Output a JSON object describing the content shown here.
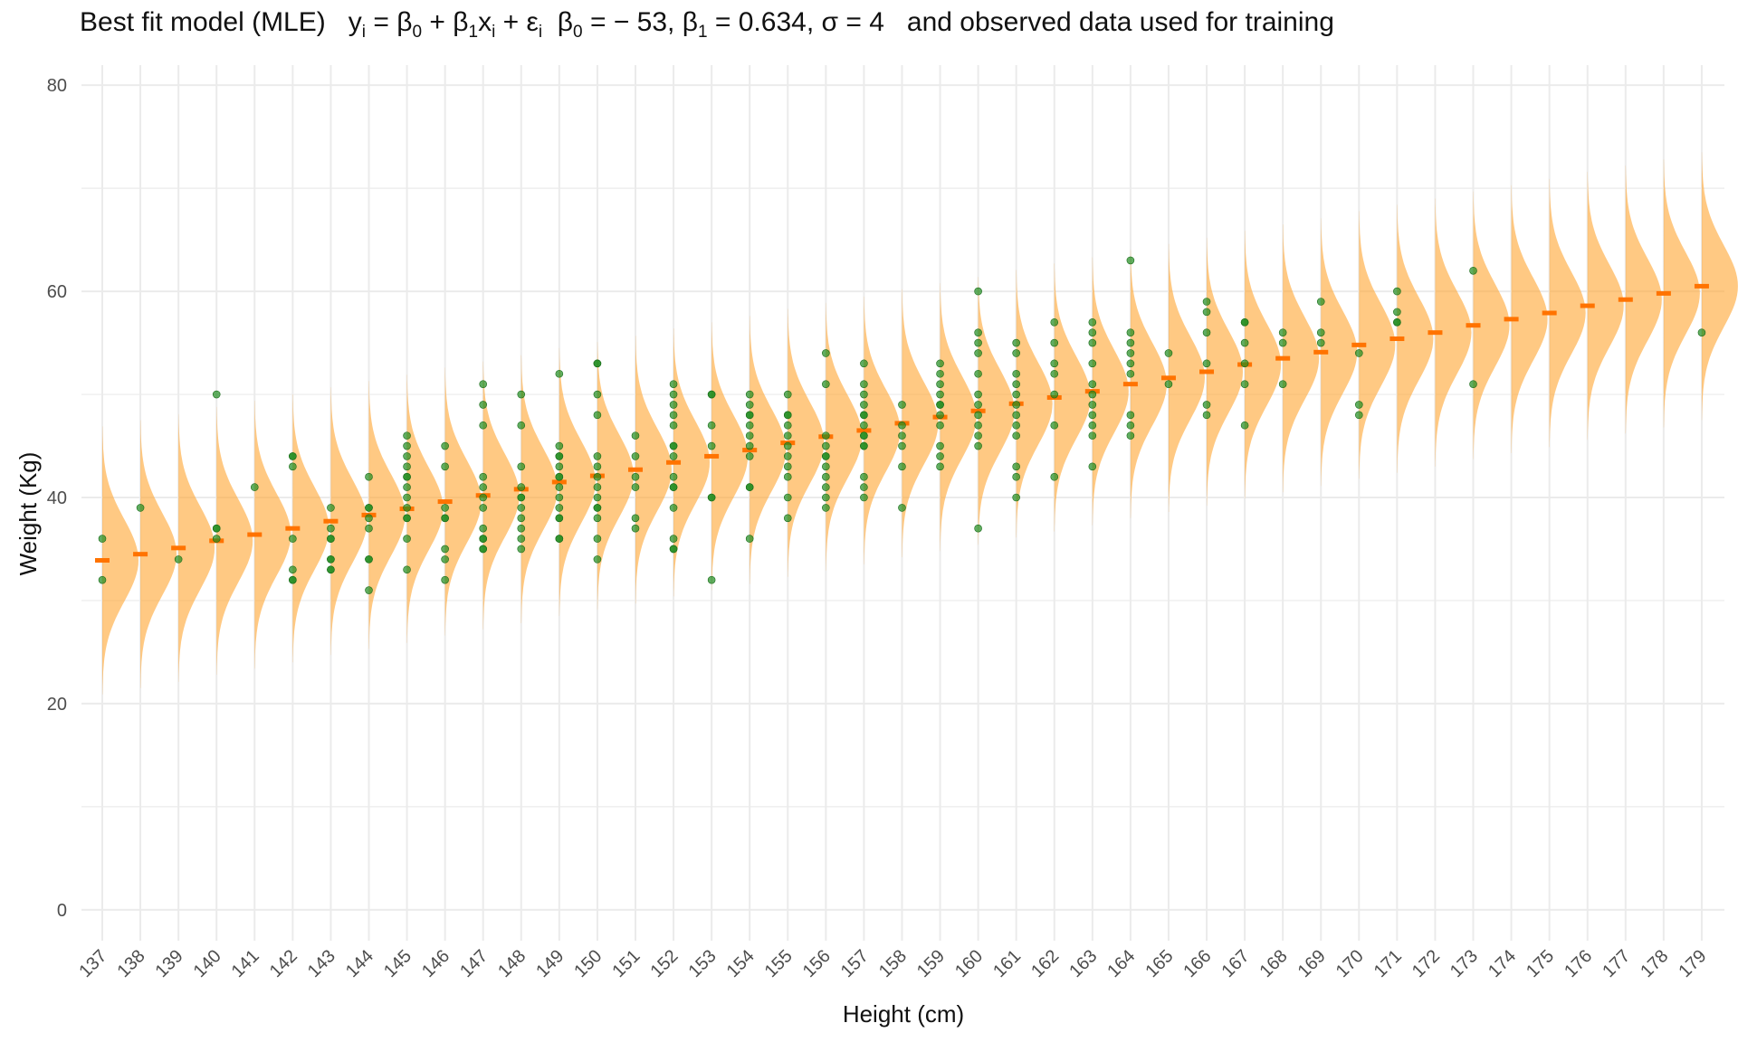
{
  "title": {
    "prefix": "Best fit model (MLE)",
    "formula_y": "y",
    "formula_rest": " = β",
    "beta0_label": "β",
    "beta0_value": " = − 53, ",
    "beta1_label": "β",
    "beta1_value": " = 0.634, ",
    "sigma_text": "σ = 4",
    "suffix": "and observed data used for training"
  },
  "chart_data": {
    "type": "scatter",
    "title": "Best fit model (MLE)   yi = β0 + β1xi + εi  β0 = − 53, β1 = 0.634, σ = 4   and observed data used for training",
    "xlabel": "Height (cm)",
    "ylabel": "Weight (Kg)",
    "ylim": [
      -3,
      83
    ],
    "yticks": [
      0,
      20,
      40,
      60,
      80
    ],
    "x_categories": [
      "137",
      "138",
      "139",
      "140",
      "141",
      "142",
      "143",
      "144",
      "145",
      "146",
      "147",
      "148",
      "149",
      "150",
      "151",
      "152",
      "153",
      "154",
      "155",
      "156",
      "157",
      "158",
      "159",
      "160",
      "161",
      "162",
      "163",
      "164",
      "165",
      "166",
      "167",
      "168",
      "169",
      "170",
      "171",
      "172",
      "173",
      "174",
      "175",
      "176",
      "177",
      "178",
      "179"
    ],
    "grid": true,
    "model": {
      "beta0": -53,
      "beta1": 0.634,
      "sigma": 4
    },
    "fitted_means": [
      33.9,
      34.5,
      35.1,
      35.8,
      36.4,
      37.0,
      37.7,
      38.3,
      38.9,
      39.6,
      40.2,
      40.8,
      41.5,
      42.1,
      42.7,
      43.4,
      44.0,
      44.6,
      45.3,
      45.9,
      46.5,
      47.2,
      47.8,
      48.4,
      49.1,
      49.7,
      50.3,
      51.0,
      51.6,
      52.2,
      52.9,
      53.5,
      54.1,
      54.8,
      55.4,
      56.0,
      56.7,
      57.3,
      57.9,
      58.6,
      59.2,
      59.8,
      60.5
    ],
    "density_fill_color": "#ffa530",
    "mean_marker_color": "#ff7300",
    "point_color": "#1e8c1e",
    "observed": [
      {
        "x": "137",
        "y": [
          36,
          32
        ]
      },
      {
        "x": "138",
        "y": [
          39
        ]
      },
      {
        "x": "139",
        "y": [
          34
        ]
      },
      {
        "x": "140",
        "y": [
          50,
          37,
          37,
          36
        ]
      },
      {
        "x": "141",
        "y": [
          41
        ]
      },
      {
        "x": "142",
        "y": [
          44,
          44,
          43,
          36,
          33,
          32,
          32
        ]
      },
      {
        "x": "143",
        "y": [
          39,
          37,
          36,
          36,
          34,
          34,
          33,
          33
        ]
      },
      {
        "x": "144",
        "y": [
          42,
          39,
          39,
          38,
          37,
          34,
          34,
          31
        ]
      },
      {
        "x": "145",
        "y": [
          46,
          45,
          44,
          43,
          42,
          42,
          41,
          40,
          39,
          38,
          38,
          36,
          33
        ]
      },
      {
        "x": "146",
        "y": [
          45,
          43,
          39,
          38,
          38,
          35,
          34,
          32
        ]
      },
      {
        "x": "147",
        "y": [
          51,
          49,
          47,
          42,
          41,
          40,
          39,
          37,
          36,
          36,
          35,
          35
        ]
      },
      {
        "x": "148",
        "y": [
          50,
          47,
          43,
          41,
          40,
          40,
          39,
          38,
          37,
          36,
          35
        ]
      },
      {
        "x": "149",
        "y": [
          52,
          45,
          44,
          44,
          43,
          42,
          42,
          41,
          40,
          39,
          38,
          38,
          36,
          36
        ]
      },
      {
        "x": "150",
        "y": [
          53,
          53,
          50,
          48,
          44,
          43,
          42,
          41,
          40,
          39,
          39,
          38,
          36,
          34
        ]
      },
      {
        "x": "151",
        "y": [
          46,
          44,
          42,
          41,
          38,
          37
        ]
      },
      {
        "x": "152",
        "y": [
          51,
          50,
          49,
          48,
          47,
          45,
          45,
          44,
          42,
          41,
          41,
          39,
          36,
          35,
          35
        ]
      },
      {
        "x": "153",
        "y": [
          50,
          50,
          47,
          45,
          40,
          40,
          32
        ]
      },
      {
        "x": "154",
        "y": [
          50,
          49,
          48,
          48,
          47,
          46,
          45,
          44,
          41,
          41,
          36
        ]
      },
      {
        "x": "155",
        "y": [
          50,
          48,
          48,
          47,
          46,
          45,
          44,
          43,
          42,
          40,
          38
        ]
      },
      {
        "x": "156",
        "y": [
          54,
          51,
          46,
          45,
          44,
          44,
          43,
          42,
          41,
          40,
          39
        ]
      },
      {
        "x": "157",
        "y": [
          53,
          51,
          50,
          49,
          48,
          48,
          47,
          46,
          46,
          45,
          45,
          42,
          41,
          40
        ]
      },
      {
        "x": "158",
        "y": [
          49,
          47,
          46,
          45,
          43,
          39
        ]
      },
      {
        "x": "159",
        "y": [
          53,
          52,
          51,
          50,
          49,
          49,
          48,
          47,
          45,
          44,
          43
        ]
      },
      {
        "x": "160",
        "y": [
          60,
          56,
          55,
          54,
          52,
          50,
          49,
          48,
          47,
          46,
          45,
          37
        ]
      },
      {
        "x": "161",
        "y": [
          55,
          54,
          52,
          51,
          50,
          49,
          48,
          47,
          46,
          43,
          42,
          40
        ]
      },
      {
        "x": "162",
        "y": [
          57,
          55,
          53,
          52,
          50,
          47,
          42
        ]
      },
      {
        "x": "163",
        "y": [
          57,
          56,
          55,
          53,
          51,
          50,
          49,
          48,
          47,
          46,
          43
        ]
      },
      {
        "x": "164",
        "y": [
          63,
          56,
          55,
          54,
          53,
          52,
          48,
          47,
          46
        ]
      },
      {
        "x": "165",
        "y": [
          54,
          51
        ]
      },
      {
        "x": "166",
        "y": [
          59,
          58,
          56,
          53,
          49,
          48
        ]
      },
      {
        "x": "167",
        "y": [
          57,
          57,
          55,
          53,
          51,
          47
        ]
      },
      {
        "x": "168",
        "y": [
          56,
          55,
          51
        ]
      },
      {
        "x": "169",
        "y": [
          59,
          56,
          55
        ]
      },
      {
        "x": "170",
        "y": [
          54,
          49,
          48
        ]
      },
      {
        "x": "171",
        "y": [
          60,
          58,
          57,
          57
        ]
      },
      {
        "x": "173",
        "y": [
          62,
          51
        ]
      },
      {
        "x": "179",
        "y": [
          56
        ]
      }
    ]
  }
}
